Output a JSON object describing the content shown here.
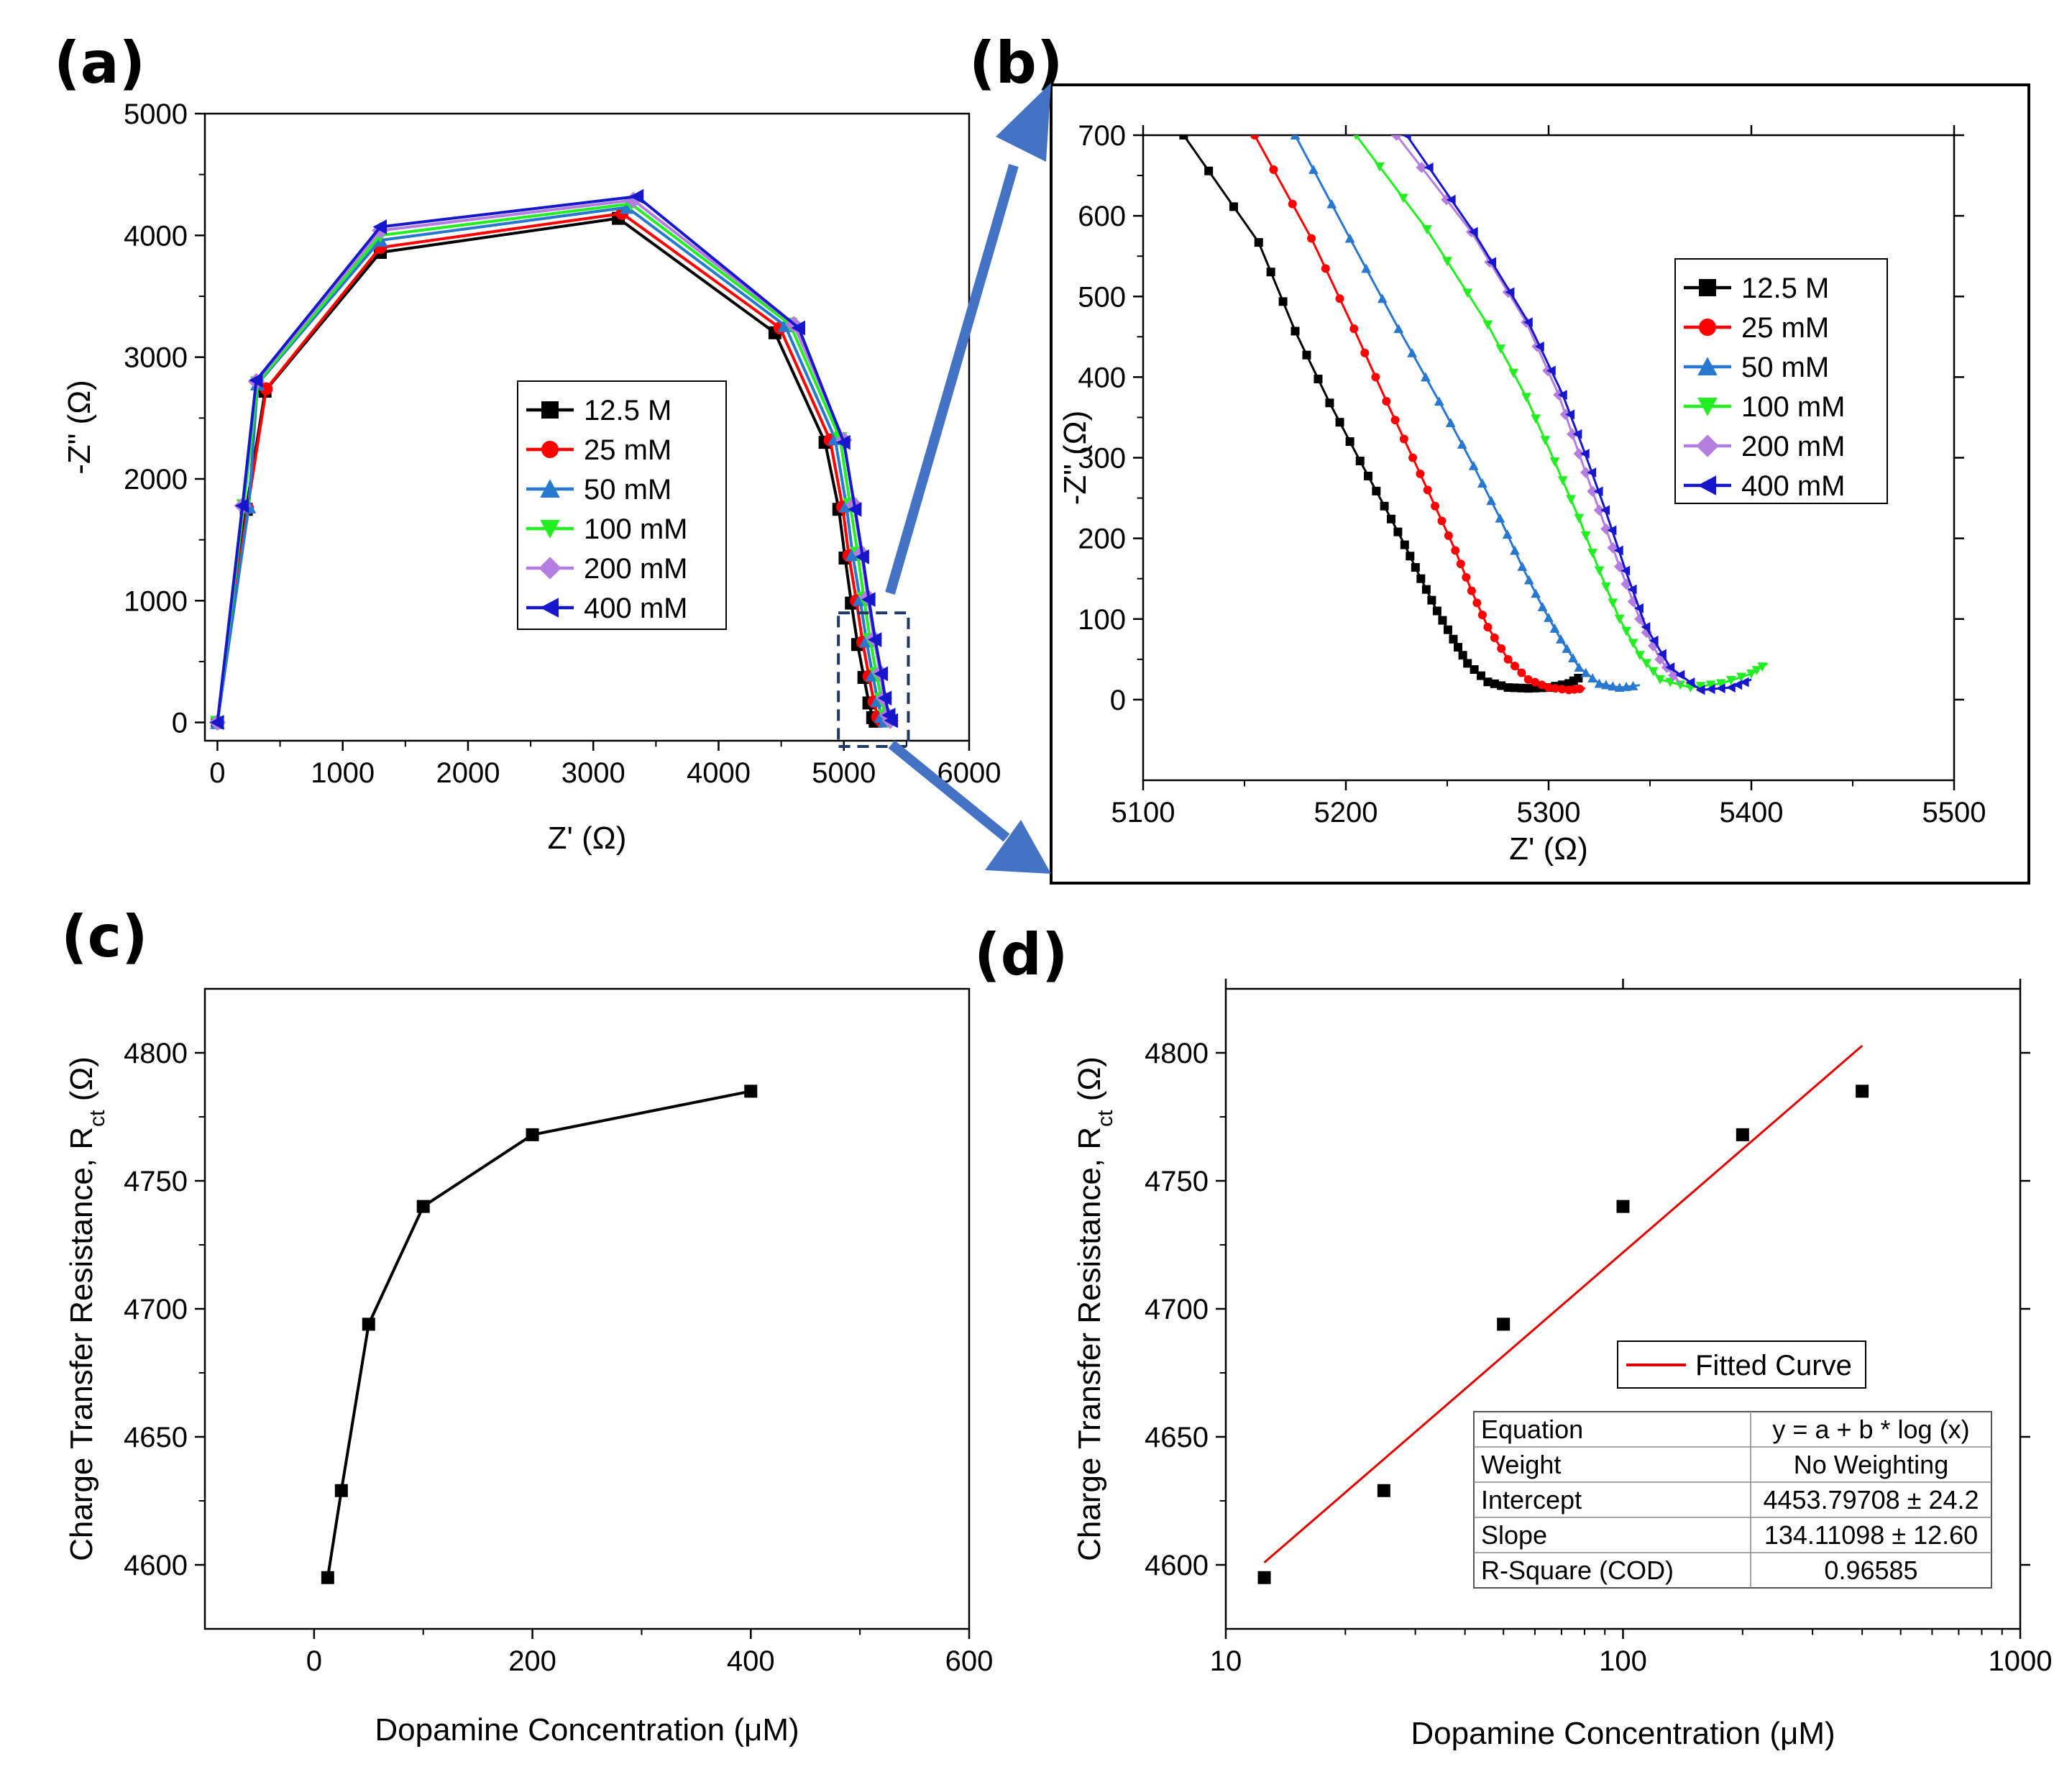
{
  "colors": {
    "12.5": "#000000",
    "25": "#ff0000",
    "50": "#2878d0",
    "100": "#22ee22",
    "200": "#b47ee0",
    "400": "#1616cc",
    "fit": "#e00000",
    "arrow": "#4472c4",
    "zoom_box": "#1f3864"
  },
  "chart_data": [
    {
      "panel": "(a)",
      "type": "line",
      "xlabel": "Z' (Ω)",
      "ylabel": "-Z\" (Ω)",
      "xlim": [
        -100,
        6000
      ],
      "ylim": [
        -150,
        5000
      ],
      "xticks": [
        0,
        1000,
        2000,
        3000,
        4000,
        5000,
        6000
      ],
      "yticks": [
        0,
        1000,
        2000,
        3000,
        4000,
        5000
      ],
      "legend_position": "center-right",
      "series": [
        {
          "name": "12.5 M",
          "key": "12.5",
          "marker": "square",
          "x": [
            0,
            230,
            380,
            1300,
            3200,
            4450,
            4850,
            4960,
            5010,
            5060,
            5110,
            5160,
            5200,
            5230,
            5250
          ],
          "y": [
            0,
            1750,
            2720,
            3860,
            4140,
            3200,
            2300,
            1750,
            1350,
            980,
            640,
            370,
            160,
            40,
            10
          ]
        },
        {
          "name": "25 mM",
          "key": "25",
          "marker": "circle",
          "x": [
            0,
            240,
            390,
            1300,
            3230,
            4490,
            4890,
            4990,
            5040,
            5100,
            5150,
            5200,
            5240,
            5270,
            5300
          ],
          "y": [
            0,
            1760,
            2740,
            3900,
            4180,
            3240,
            2320,
            1770,
            1370,
            1000,
            660,
            380,
            170,
            45,
            10
          ]
        },
        {
          "name": "50 mM",
          "key": "50",
          "marker": "triangle-up",
          "x": [
            0,
            250,
            320,
            1300,
            3270,
            4530,
            4930,
            5020,
            5070,
            5130,
            5180,
            5230,
            5270,
            5300,
            5330
          ],
          "y": [
            0,
            1770,
            2780,
            3960,
            4230,
            3260,
            2330,
            1780,
            1380,
            1010,
            670,
            390,
            180,
            50,
            12
          ]
        },
        {
          "name": "100 mM",
          "key": "100",
          "marker": "triangle-down",
          "x": [
            0,
            210,
            320,
            1300,
            3300,
            4570,
            4970,
            5050,
            5110,
            5160,
            5210,
            5260,
            5300,
            5330,
            5350
          ],
          "y": [
            0,
            1780,
            2790,
            4000,
            4260,
            3270,
            2330,
            1790,
            1390,
            1020,
            680,
            400,
            190,
            55,
            15
          ]
        },
        {
          "name": "200 mM",
          "key": "200",
          "marker": "diamond",
          "x": [
            0,
            200,
            310,
            1300,
            3320,
            4600,
            5000,
            5080,
            5140,
            5190,
            5240,
            5290,
            5320,
            5350,
            5370
          ],
          "y": [
            0,
            1780,
            2800,
            4040,
            4290,
            3270,
            2320,
            1790,
            1390,
            1030,
            690,
            410,
            200,
            60,
            15
          ]
        },
        {
          "name": "400 mM",
          "key": "400",
          "marker": "triangle-left",
          "x": [
            0,
            200,
            310,
            1300,
            3350,
            4640,
            5000,
            5090,
            5150,
            5200,
            5250,
            5300,
            5330,
            5360,
            5380
          ],
          "y": [
            0,
            1780,
            2810,
            4070,
            4320,
            3240,
            2300,
            1750,
            1360,
            1010,
            680,
            400,
            200,
            60,
            15
          ]
        }
      ],
      "inset_region": {
        "x": [
          5100,
          5400
        ],
        "y": [
          -150,
          900
        ]
      }
    },
    {
      "panel": "(b)",
      "type": "line",
      "xlabel": "Z' (Ω)",
      "ylabel": "-Z\" (Ω)",
      "xlim": [
        5100,
        5500
      ],
      "ylim": [
        -100,
        700
      ],
      "xticks": [
        5100,
        5200,
        5300,
        5400,
        5500
      ],
      "yticks": [
        0,
        100,
        200,
        300,
        400,
        500,
        600,
        700
      ],
      "legend_position": "top-right",
      "series": [
        {
          "name": "12.5 M",
          "key": "12.5",
          "marker": "square",
          "x": [
            5120,
            5157,
            5175,
            5192,
            5207,
            5219,
            5229,
            5237,
            5245,
            5253,
            5260,
            5270,
            5280,
            5290,
            5300,
            5310,
            5317
          ],
          "y": [
            700,
            567,
            457,
            368,
            296,
            240,
            192,
            150,
            110,
            75,
            45,
            22,
            15,
            14,
            15,
            20,
            30
          ]
        },
        {
          "name": "25 mM",
          "key": "25",
          "marker": "circle",
          "x": [
            5155,
            5183,
            5204,
            5220,
            5233,
            5244,
            5254,
            5262,
            5270,
            5280,
            5290,
            5300,
            5310,
            5318
          ],
          "y": [
            700,
            572,
            460,
            370,
            300,
            240,
            185,
            135,
            90,
            50,
            25,
            15,
            12,
            14
          ]
        },
        {
          "name": "50 mM",
          "key": "50",
          "marker": "triangle-up",
          "x": [
            5175,
            5202,
            5226,
            5246,
            5263,
            5276,
            5287,
            5297,
            5306,
            5315,
            5325,
            5335,
            5345
          ],
          "y": [
            700,
            572,
            460,
            370,
            290,
            225,
            165,
            115,
            75,
            40,
            20,
            15,
            18
          ]
        },
        {
          "name": "100 mM",
          "key": "100",
          "marker": "triangle-down",
          "x": [
            5205,
            5240,
            5270,
            5289,
            5303,
            5315,
            5325,
            5335,
            5345,
            5355,
            5370,
            5385,
            5400,
            5408
          ],
          "y": [
            700,
            583,
            465,
            375,
            295,
            225,
            160,
            100,
            55,
            25,
            15,
            20,
            32,
            45
          ]
        },
        {
          "name": "200 mM",
          "key": "200",
          "marker": "diamond",
          "x": [
            5225,
            5262,
            5289,
            5305,
            5315,
            5325,
            5335,
            5345,
            5355,
            5365
          ],
          "y": [
            700,
            580,
            468,
            378,
            305,
            235,
            165,
            100,
            50,
            20
          ]
        },
        {
          "name": "400 mM",
          "key": "400",
          "marker": "triangle-left",
          "x": [
            5230,
            5263,
            5290,
            5307,
            5318,
            5328,
            5338,
            5348,
            5360,
            5375,
            5390,
            5400
          ],
          "y": [
            700,
            580,
            468,
            378,
            305,
            235,
            160,
            90,
            40,
            12,
            15,
            25
          ]
        }
      ]
    },
    {
      "panel": "(c)",
      "type": "line",
      "xlabel": "Dopamine Concentration (μM)",
      "ylabel": "Charge Transfer Resistance, R",
      "ylabel_sub": "ct",
      "ylabel_unit": " (Ω)",
      "xlim": [
        -100,
        600
      ],
      "ylim": [
        4575,
        4825
      ],
      "xticks": [
        0,
        200,
        400,
        600
      ],
      "yticks": [
        4600,
        4650,
        4700,
        4750,
        4800
      ],
      "series": [
        {
          "name": "Rct",
          "key": "12.5",
          "marker": "square",
          "x": [
            12.5,
            25,
            50,
            100,
            200,
            400
          ],
          "y": [
            4595,
            4629,
            4694,
            4740,
            4768,
            4785
          ]
        }
      ]
    },
    {
      "panel": "(d)",
      "type": "scatter",
      "xscale": "log",
      "xlabel": "Dopamine Concentration (μM)",
      "ylabel": "Charge Transfer Resistance, R",
      "ylabel_sub": "ct",
      "ylabel_unit": " (Ω)",
      "xlim": [
        10,
        1000
      ],
      "ylim": [
        4575,
        4825
      ],
      "xticks": [
        10,
        100,
        1000
      ],
      "yticks": [
        4600,
        4650,
        4700,
        4750,
        4800
      ],
      "points": {
        "x": [
          12.5,
          25,
          50,
          100,
          200,
          400
        ],
        "y": [
          4595,
          4629,
          4694,
          4740,
          4768,
          4785
        ]
      },
      "fit": {
        "name": "Fitted Curve",
        "a": 4453.79708,
        "b": 134.11098,
        "x_range": [
          12.5,
          400
        ]
      },
      "table": [
        [
          "Equation",
          "y = a + b * log (x)"
        ],
        [
          "Weight",
          "No Weighting"
        ],
        [
          "Intercept",
          "4453.79708 ± 24.2"
        ],
        [
          "Slope",
          "134.11098 ± 12.60"
        ],
        [
          "R-Square (COD)",
          "0.96585"
        ]
      ]
    }
  ],
  "labels": {
    "a": "(a)",
    "b": "(b)",
    "c": "(c)",
    "d": "(d)"
  }
}
